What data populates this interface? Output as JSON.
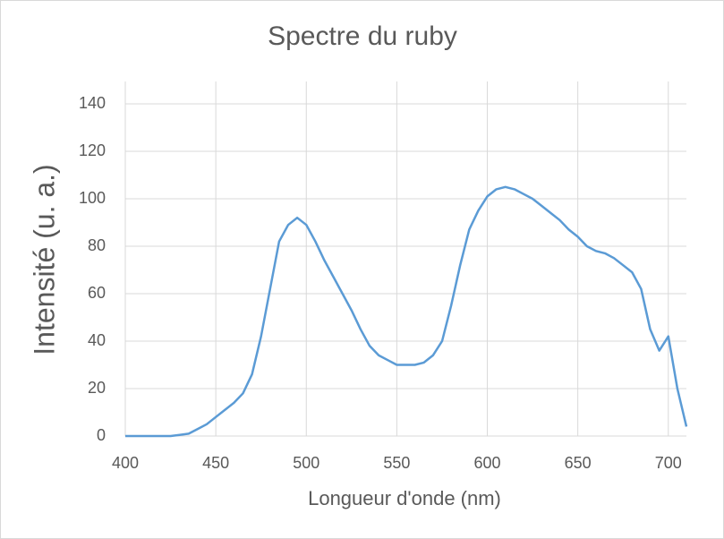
{
  "chart_data": {
    "type": "line",
    "title": "Spectre du ruby",
    "x_label": "Longueur d'onde (nm)",
    "y_label": "Intensité (u. a.)",
    "x": [
      400,
      405,
      410,
      415,
      420,
      425,
      430,
      435,
      440,
      445,
      450,
      455,
      460,
      465,
      470,
      475,
      480,
      485,
      490,
      495,
      500,
      505,
      510,
      515,
      520,
      525,
      530,
      535,
      540,
      545,
      550,
      555,
      560,
      565,
      570,
      575,
      580,
      585,
      590,
      595,
      600,
      605,
      610,
      615,
      620,
      625,
      630,
      635,
      640,
      645,
      650,
      655,
      660,
      665,
      670,
      675,
      680,
      685,
      690,
      695,
      700,
      705,
      710
    ],
    "series": [
      {
        "name": "Intensité",
        "color": "#5b9bd5",
        "values": [
          0,
          0,
          0,
          0,
          0,
          0,
          0.5,
          1,
          3,
          5,
          8,
          11,
          14,
          18,
          26,
          42,
          62,
          82,
          89,
          92,
          89,
          82,
          74,
          67,
          60,
          53,
          45,
          38,
          34,
          32,
          30,
          30,
          30,
          31,
          34,
          40,
          55,
          72,
          87,
          95,
          101,
          104,
          105,
          104,
          102,
          100,
          97,
          94,
          91,
          87,
          84,
          80,
          78,
          77,
          75,
          72,
          69,
          62,
          45,
          36,
          42,
          20,
          4
        ]
      }
    ],
    "xlim": [
      400,
      710
    ],
    "ylim": [
      0,
      140
    ],
    "xticks": [
      400,
      450,
      500,
      550,
      600,
      650,
      700
    ],
    "yticks": [
      0,
      20,
      40,
      60,
      80,
      100,
      120,
      140
    ],
    "grid": true
  }
}
